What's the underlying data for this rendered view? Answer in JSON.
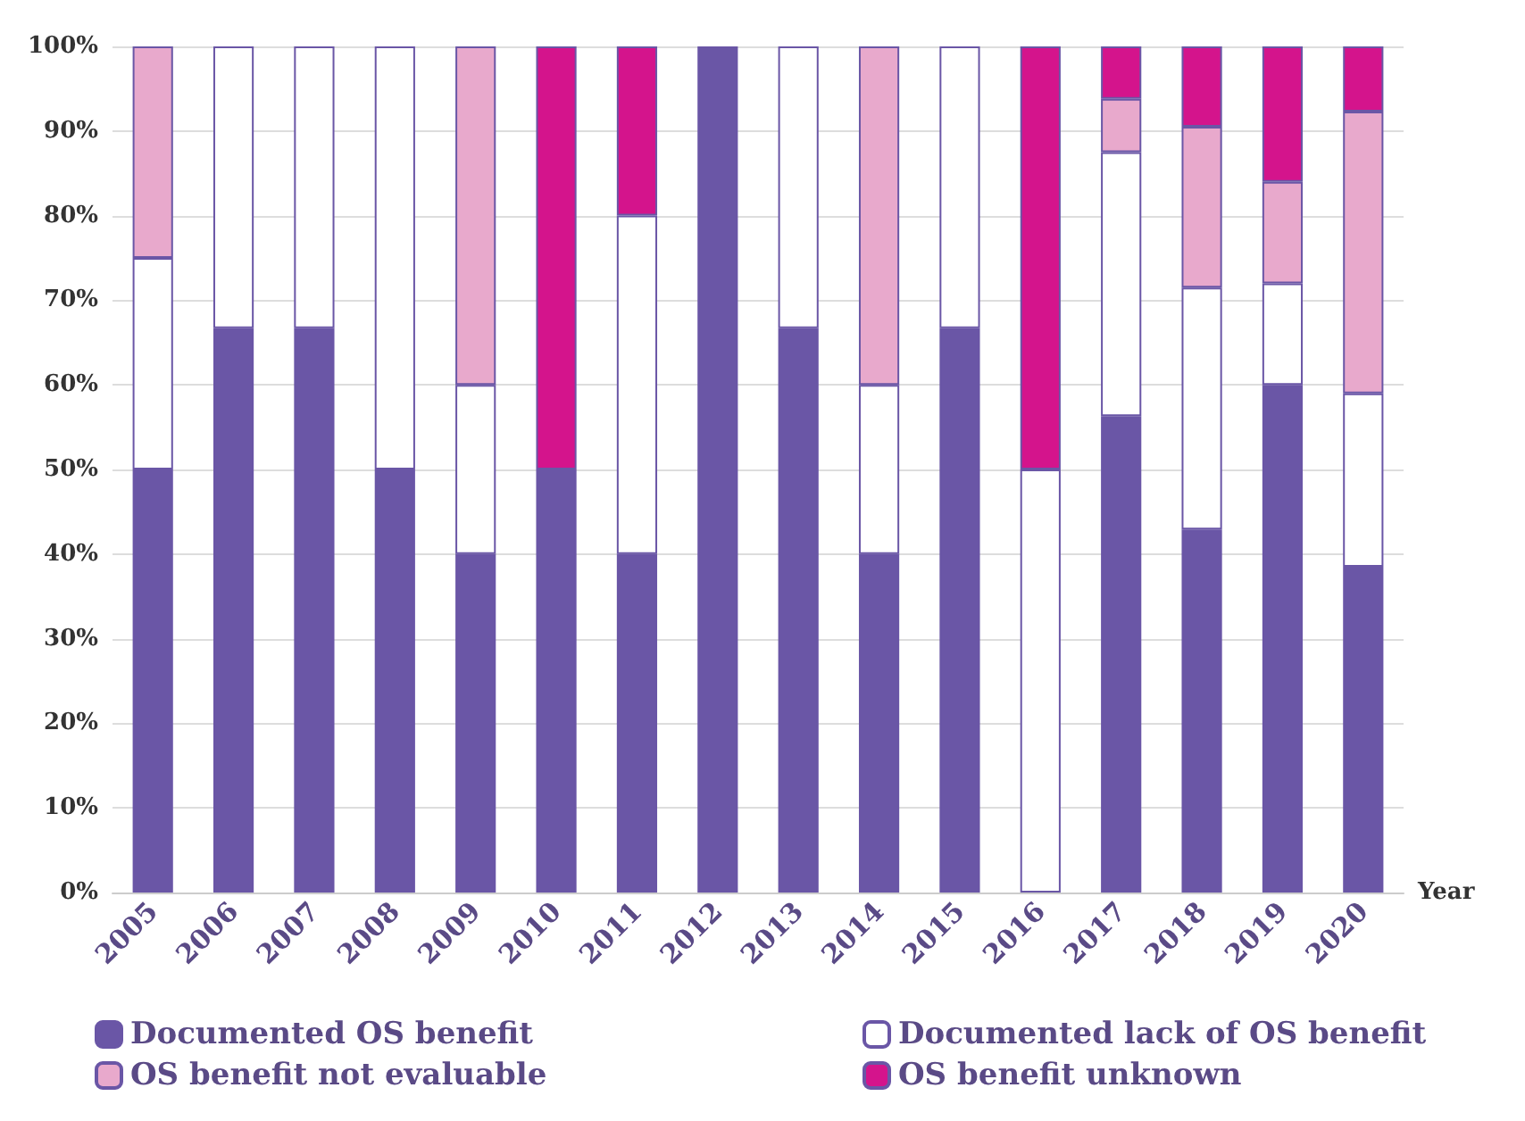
{
  "chart_data": {
    "type": "bar",
    "stacked": true,
    "xlabel": "Year",
    "legend": "bottom",
    "grid": "y",
    "categories": [
      "2005",
      "2006",
      "2007",
      "2008",
      "2009",
      "2010",
      "2011",
      "2012",
      "2013",
      "2014",
      "2015",
      "2016",
      "2017",
      "2018",
      "2019",
      "2020"
    ],
    "ylim": [
      0,
      100
    ],
    "yticks": [
      {
        "value": 0,
        "label": "0%"
      },
      {
        "value": 10,
        "label": "10%"
      },
      {
        "value": 20,
        "label": "20%"
      },
      {
        "value": 30,
        "label": "30%"
      },
      {
        "value": 40,
        "label": "40%"
      },
      {
        "value": 50,
        "label": "50%"
      },
      {
        "value": 60,
        "label": "60%"
      },
      {
        "value": 70,
        "label": "70%"
      },
      {
        "value": 80,
        "label": "80%"
      },
      {
        "value": 90,
        "label": "90%"
      },
      {
        "value": 100,
        "label": "100%"
      }
    ],
    "series": [
      {
        "name": "Documented OS benefit",
        "color": "#6a56a6",
        "values": [
          50,
          66.7,
          66.7,
          50,
          40,
          50,
          40,
          100,
          66.7,
          40,
          66.7,
          0,
          56.3,
          42.9,
          60,
          38.5
        ]
      },
      {
        "name": "Documented lack of OS benefit",
        "color": "#ffffff",
        "values": [
          25,
          33.3,
          33.3,
          50,
          20,
          0,
          40,
          0,
          33.3,
          20,
          33.3,
          50,
          31.2,
          28.6,
          12,
          20.5
        ]
      },
      {
        "name": "OS benefit not evaluable",
        "color": "#e8a9cc",
        "values": [
          25,
          0,
          0,
          0,
          40,
          0,
          0,
          0,
          0,
          40,
          0,
          0,
          6.3,
          19,
          12,
          33.3
        ]
      },
      {
        "name": "OS benefit unknown",
        "color": "#d4148c",
        "values": [
          0,
          0,
          0,
          0,
          0,
          50,
          20,
          0,
          0,
          0,
          0,
          50,
          6.2,
          9.5,
          16,
          7.7
        ]
      }
    ]
  }
}
